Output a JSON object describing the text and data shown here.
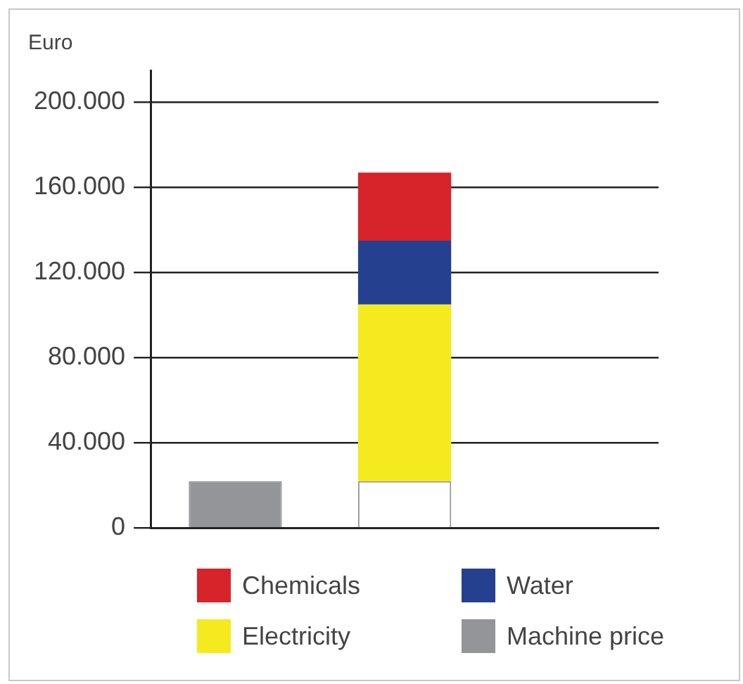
{
  "chart_data": {
    "type": "bar",
    "ylabel": "Euro",
    "categories": [
      null,
      null,
      null
    ],
    "stacked": true,
    "series": [
      {
        "name": "Machine price",
        "colors": [
          "#939598",
          "#ffffff",
          null
        ],
        "values": [
          22000,
          22000,
          null
        ]
      },
      {
        "name": "Electricity",
        "color": "#f5ea1e",
        "values": [
          null,
          83000,
          null
        ]
      },
      {
        "name": "Water",
        "color": "#25408f",
        "values": [
          null,
          30000,
          null
        ]
      },
      {
        "name": "Chemicals",
        "color": "#d7232a",
        "values": [
          null,
          32000,
          null
        ]
      }
    ],
    "ylim": [
      0,
      215000
    ],
    "yticks": [
      {
        "value": 0,
        "label": "0"
      },
      {
        "value": 40000,
        "label": "40.000"
      },
      {
        "value": 80000,
        "label": "80.000"
      },
      {
        "value": 120000,
        "label": "120.000"
      },
      {
        "value": 160000,
        "label": "160.000"
      },
      {
        "value": 200000,
        "label": "200.000"
      }
    ],
    "grid": "y",
    "legend": "bottom"
  }
}
